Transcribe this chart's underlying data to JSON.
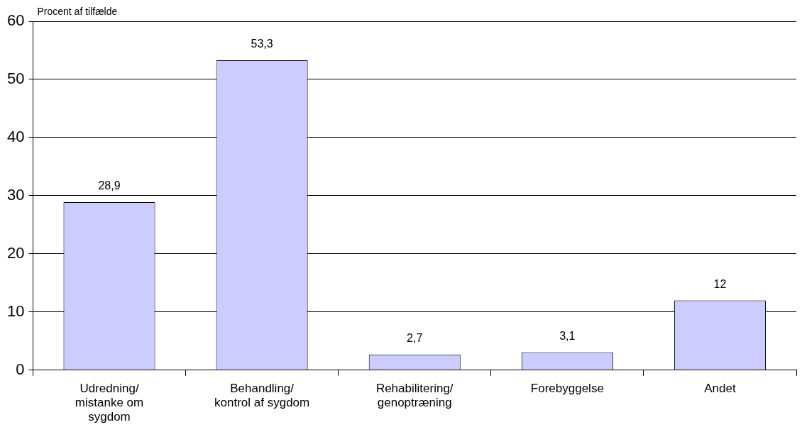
{
  "chart_data": {
    "type": "bar",
    "ylabel": "Procent af tilfælde",
    "categories": [
      "Udredning/ mistanke om sygdom",
      "Behandling/ kontrol af sygdom",
      "Rehabilitering/ genoptræning",
      "Forebyggelse",
      "Andet"
    ],
    "values": [
      28.9,
      53.3,
      2.7,
      3.1,
      12
    ],
    "value_labels": [
      "28,9",
      "53,3",
      "2,7",
      "3,1",
      "12"
    ],
    "color": "#ccccff",
    "ylim": [
      0,
      60
    ],
    "yticks": [
      0,
      10,
      20,
      30,
      40,
      50,
      60
    ],
    "grid": "y",
    "legend": false
  }
}
